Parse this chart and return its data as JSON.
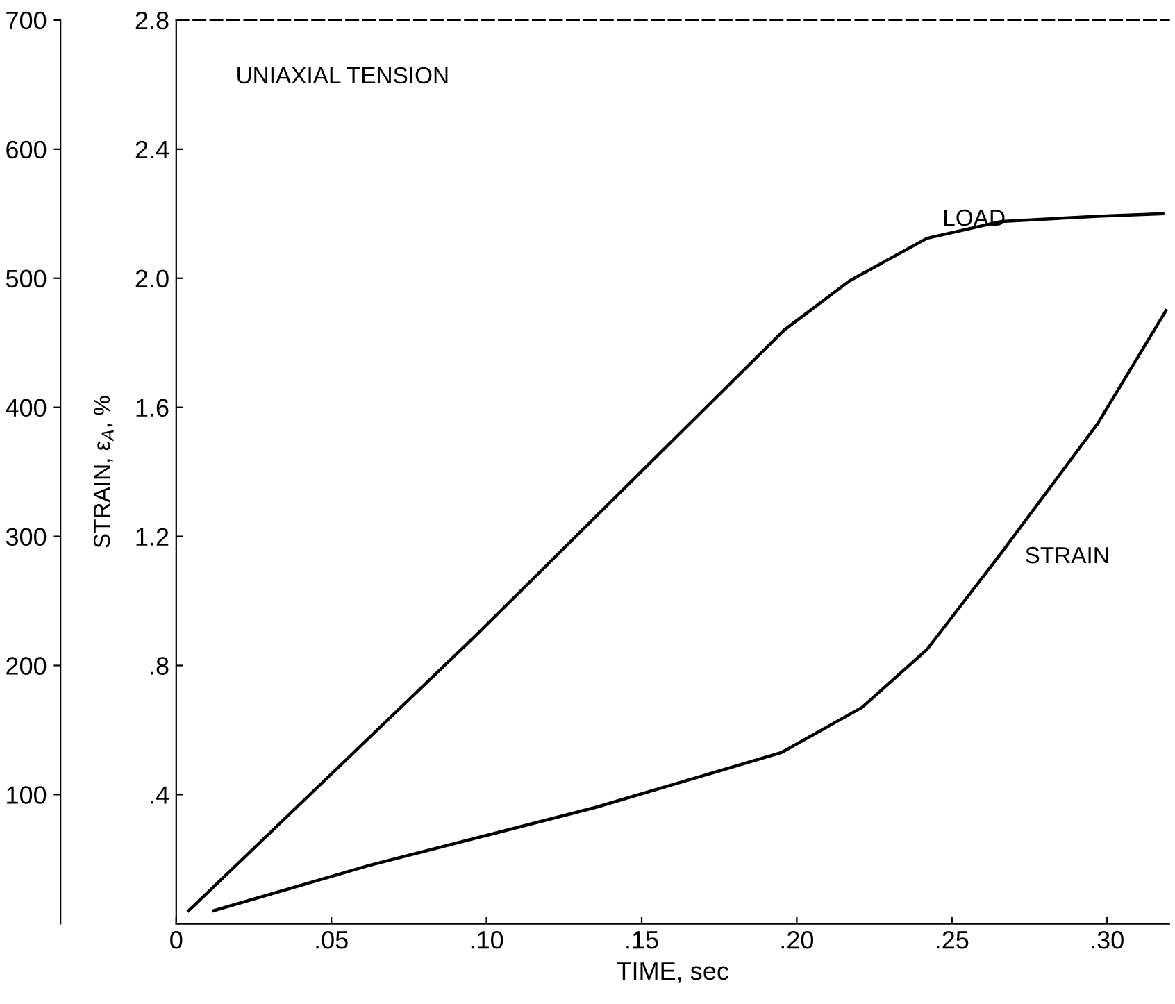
{
  "chart_data": {
    "type": "line",
    "xlabel": "TIME, sec",
    "ylabel": "STRAIN, ε$_{A}$, %",
    "annotations": [
      "UNIAXIAL TENSION"
    ],
    "xlim": [
      0,
      0.32
    ],
    "xticks": [
      {
        "value": 0,
        "label": "0"
      },
      {
        "value": 0.05,
        "label": ".05"
      },
      {
        "value": 0.1,
        "label": ".10"
      },
      {
        "value": 0.15,
        "label": ".15"
      },
      {
        "value": 0.2,
        "label": ".20"
      },
      {
        "value": 0.25,
        "label": ".25"
      },
      {
        "value": 0.3,
        "label": ".30"
      }
    ],
    "ylim": [
      0,
      2.8
    ],
    "yticks": [
      {
        "value": 0.4,
        "label": ".4"
      },
      {
        "value": 0.8,
        "label": ".8"
      },
      {
        "value": 1.2,
        "label": "1.2"
      },
      {
        "value": 1.6,
        "label": "1.6"
      },
      {
        "value": 2.0,
        "label": "2.0"
      },
      {
        "value": 2.4,
        "label": "2.4"
      },
      {
        "value": 2.8,
        "label": "2.8"
      }
    ],
    "y2lim": [
      0,
      700
    ],
    "y2ticks": [
      100,
      200,
      300,
      400,
      500,
      600,
      700
    ],
    "grid": false,
    "legend": false,
    "marker": "none",
    "line_style": "solid",
    "series": [
      {
        "name": "LOAD",
        "color": "#000000",
        "axis": "y2",
        "x": [
          0.004,
          0.096,
          0.196,
          0.217,
          0.242,
          0.266,
          0.297,
          0.318
        ],
        "values": [
          10,
          222,
          460,
          498,
          531,
          544,
          548,
          550
        ]
      },
      {
        "name": "STRAIN",
        "color": "#000000",
        "x": [
          0.012,
          0.062,
          0.135,
          0.195,
          0.221,
          0.242,
          0.266,
          0.297,
          0.319
        ],
        "values": [
          0.04,
          0.18,
          0.36,
          0.53,
          0.67,
          0.85,
          1.15,
          1.55,
          1.9
        ]
      }
    ]
  }
}
